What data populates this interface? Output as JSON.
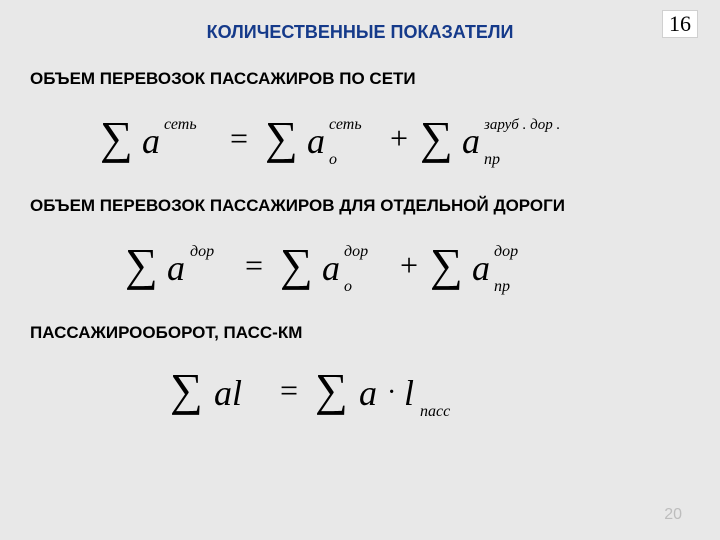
{
  "page_number_top": "16",
  "page_number_bottom": "20",
  "title": "КОЛИЧЕСТВЕННЫЕ ПОКАЗАТЕЛИ",
  "sections": {
    "s1": {
      "label": "ОБЪЕМ ПЕРЕВОЗОК ПАССАЖИРОВ ПО СЕТИ"
    },
    "s2": {
      "label": "ОБЪЕМ ПЕРЕВОЗОК ПАССАЖИРОВ ДЛЯ ОТДЕЛЬНОЙ ДОРОГИ"
    },
    "s3": {
      "label": "ПАССАЖИРООБОРОТ, ПАСС-КМ"
    }
  },
  "formulas": {
    "f1": {
      "type": "equation",
      "terms": [
        {
          "base": "a",
          "sup": "сеть",
          "sub": ""
        },
        {
          "base": "a",
          "sup": "сеть",
          "sub": "о"
        },
        {
          "base": "a",
          "sup": "заруб . дор .",
          "sub": "пр"
        }
      ],
      "operators": [
        "=",
        "+"
      ]
    },
    "f2": {
      "type": "equation",
      "terms": [
        {
          "base": "a",
          "sup": "дор",
          "sub": ""
        },
        {
          "base": "a",
          "sup": "дор",
          "sub": "о"
        },
        {
          "base": "a",
          "sup": "дор",
          "sub": "пр"
        }
      ],
      "operators": [
        "=",
        "+"
      ]
    },
    "f3": {
      "type": "equation",
      "terms": [
        {
          "base": "al",
          "sup": "",
          "sub": ""
        },
        {
          "base": "a · l",
          "sup": "",
          "sub": "пасс"
        }
      ],
      "operators": [
        "="
      ]
    }
  },
  "style": {
    "background": "#e8e8e8",
    "title_color": "#153a8a",
    "text_color": "#000000",
    "math_color": "#000000",
    "faded_color": "#bdbdbd",
    "title_fontsize": 18,
    "label_fontsize": 17,
    "math_base_fontsize": 32,
    "math_sigma_fontsize": 44,
    "math_script_fontsize": 15,
    "font_family_ui": "Arial",
    "font_family_math": "Times New Roman"
  }
}
